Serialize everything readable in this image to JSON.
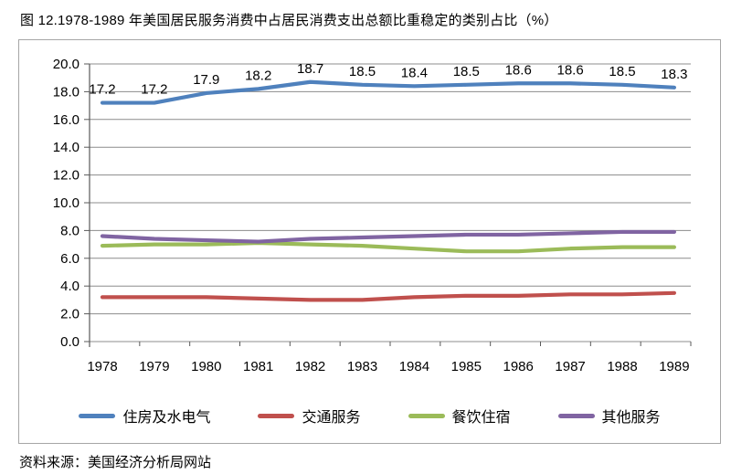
{
  "title": "图 12.1978-1989 年美国居民服务消费中占居民消费支出总额比重稳定的类别占比（%）",
  "source_note": "资料来源：美国经济分析局网站",
  "colors": {
    "grid": "#8c8c8c",
    "axis": "#595959",
    "box_border": "#a6a6a6",
    "text": "#000000"
  },
  "chart_data": {
    "type": "line",
    "categories": [
      "1978",
      "1979",
      "1980",
      "1981",
      "1982",
      "1983",
      "1984",
      "1985",
      "1986",
      "1987",
      "1988",
      "1989"
    ],
    "series": [
      {
        "name": "住房及水电气",
        "color": "#4f81bd",
        "values": [
          17.2,
          17.2,
          17.9,
          18.2,
          18.7,
          18.5,
          18.4,
          18.5,
          18.6,
          18.6,
          18.5,
          18.3
        ],
        "data_labels": true
      },
      {
        "name": "交通服务",
        "color": "#c0504d",
        "values": [
          3.2,
          3.2,
          3.2,
          3.1,
          3.0,
          3.0,
          3.2,
          3.3,
          3.3,
          3.4,
          3.4,
          3.5
        ],
        "data_labels": false
      },
      {
        "name": "餐饮住宿",
        "color": "#9bbb59",
        "values": [
          6.9,
          7.0,
          7.0,
          7.1,
          7.0,
          6.9,
          6.7,
          6.5,
          6.5,
          6.7,
          6.8,
          6.8
        ],
        "data_labels": false
      },
      {
        "name": "其他服务",
        "color": "#8064a2",
        "values": [
          7.6,
          7.4,
          7.3,
          7.2,
          7.4,
          7.5,
          7.6,
          7.7,
          7.7,
          7.8,
          7.9,
          7.9
        ],
        "data_labels": false
      }
    ],
    "title": "图 12.1978-1989 年美国居民服务消费中占居民消费支出总额比重稳定的类别占比（%）",
    "xlabel": "",
    "ylabel": "",
    "ylim": [
      0,
      20
    ],
    "y_tick_step": 2,
    "y_tick_labels": [
      "0.0",
      "2.0",
      "4.0",
      "6.0",
      "8.0",
      "10.0",
      "12.0",
      "14.0",
      "16.0",
      "18.0",
      "20.0"
    ],
    "grid": true,
    "legend_position": "bottom"
  }
}
